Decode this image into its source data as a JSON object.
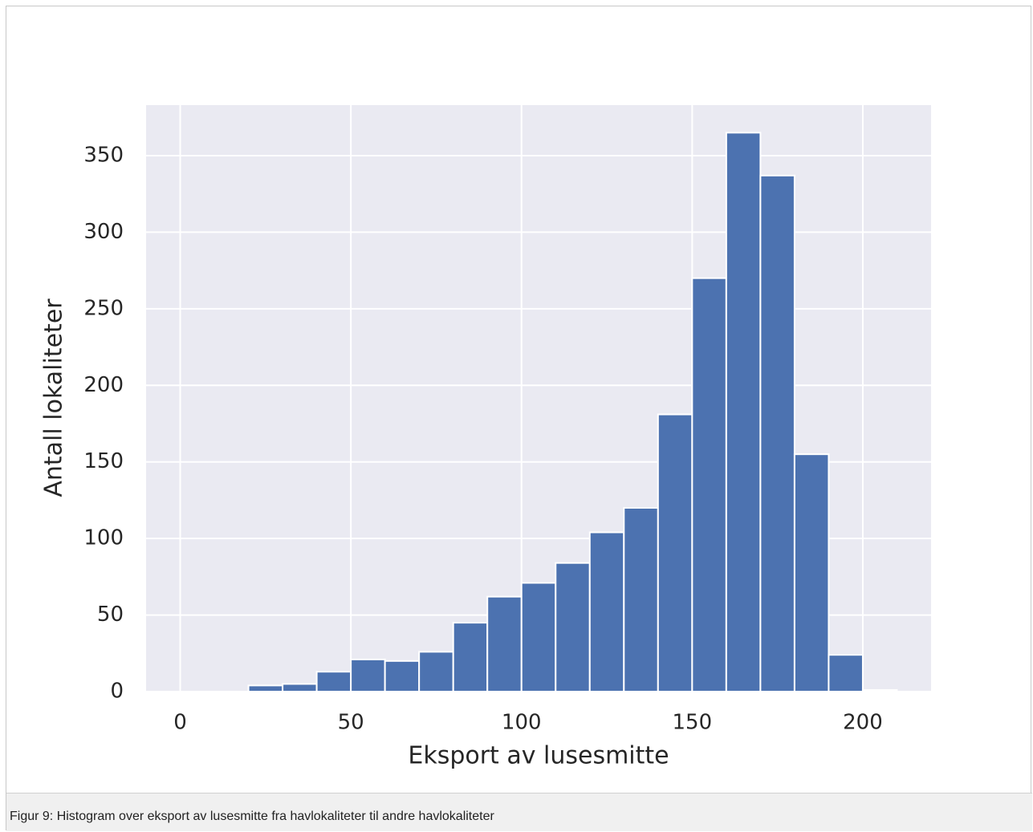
{
  "chart_data": {
    "type": "histogram",
    "xlabel": "Eksport av lusesmitte",
    "ylabel": "Antall lokaliteter",
    "bins": [
      0,
      10,
      20,
      30,
      40,
      50,
      60,
      70,
      80,
      90,
      100,
      110,
      120,
      130,
      140,
      150,
      160,
      170,
      180,
      190,
      200,
      210
    ],
    "values": [
      0,
      0,
      4,
      5,
      13,
      21,
      20,
      26,
      45,
      62,
      71,
      84,
      104,
      120,
      181,
      270,
      365,
      337,
      155,
      24,
      1
    ],
    "color": "#4c72b0",
    "xlim": [
      -10,
      220
    ],
    "xticks": [
      0,
      50,
      100,
      150,
      200
    ],
    "ylim": [
      0,
      383
    ],
    "yticks": [
      0,
      50,
      100,
      150,
      200,
      250,
      300,
      350
    ],
    "grid": true
  },
  "caption": "Figur 9: Histogram over eksport av lusesmitte fra havlokaliteter til andre havlokaliteter"
}
